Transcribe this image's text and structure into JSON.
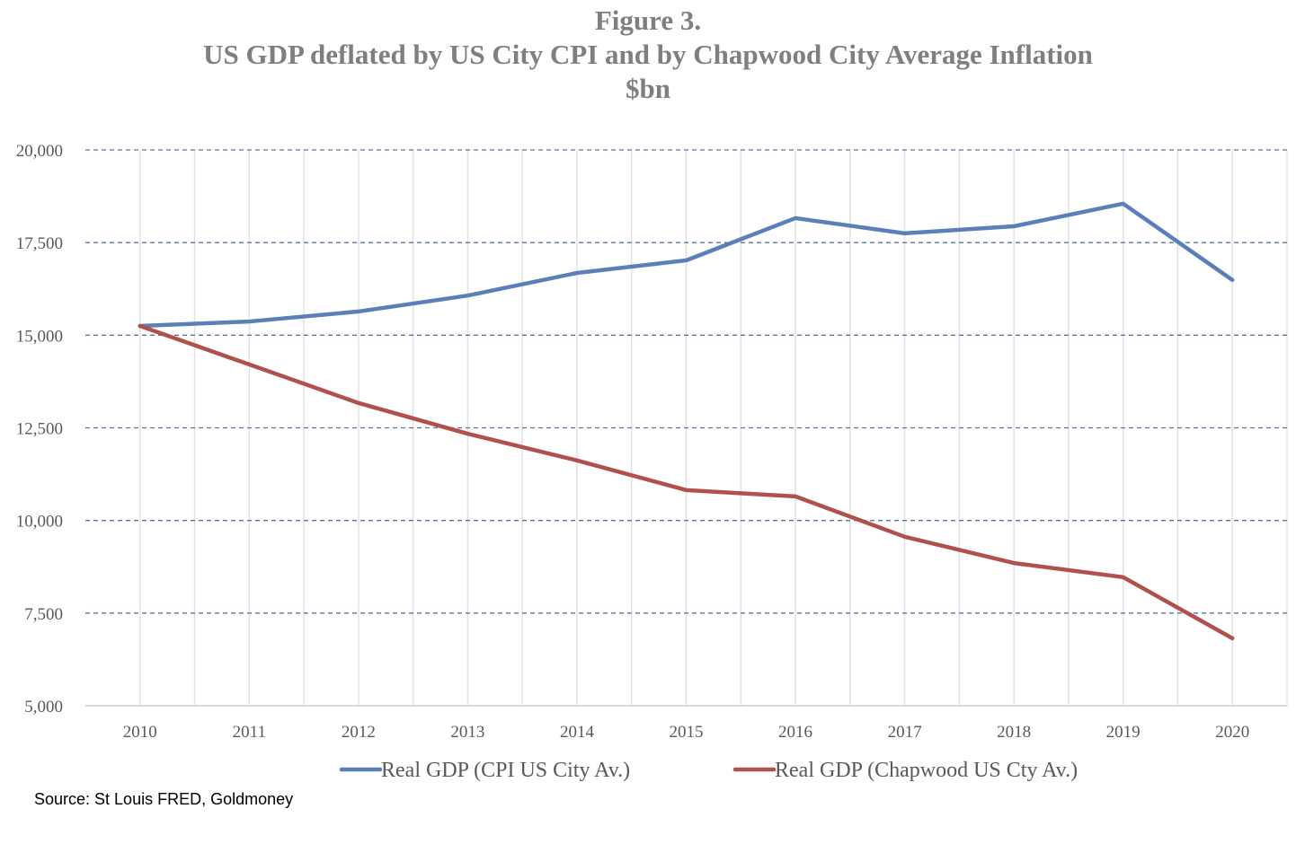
{
  "chart_data": {
    "type": "line",
    "title": [
      "Figure 3.",
      "US GDP deflated by US City CPI and by Chapwood City Average Inflation",
      "$bn"
    ],
    "xlabel": "",
    "ylabel": "",
    "categories": [
      "2010",
      "2011",
      "2012",
      "2013",
      "2014",
      "2015",
      "2016",
      "2017",
      "2018",
      "2019",
      "2020"
    ],
    "ylim": [
      5000,
      20000
    ],
    "yticks": [
      5000,
      7500,
      10000,
      12500,
      15000,
      17500,
      20000
    ],
    "ytick_labels": [
      "5,000",
      "7,500",
      "10,000",
      "12,500",
      "15,000",
      "17,500",
      "20,000"
    ],
    "grid": "horizontal dashed major, vertical light",
    "legend_placement": "bottom",
    "series": [
      {
        "name": "Real GDP (CPI US City Av.)",
        "color": "#5b7fb8",
        "values": [
          15250,
          15370,
          15640,
          16070,
          16680,
          17020,
          18160,
          17750,
          17940,
          18550,
          16490
        ]
      },
      {
        "name": "Real GDP (Chapwood US Cty Av.)",
        "color": "#b0514d",
        "values": [
          15250,
          14210,
          13170,
          12340,
          11620,
          10820,
          10650,
          9560,
          8850,
          8470,
          6820
        ]
      }
    ]
  },
  "source": "Source: St Louis FRED, Goldmoney"
}
